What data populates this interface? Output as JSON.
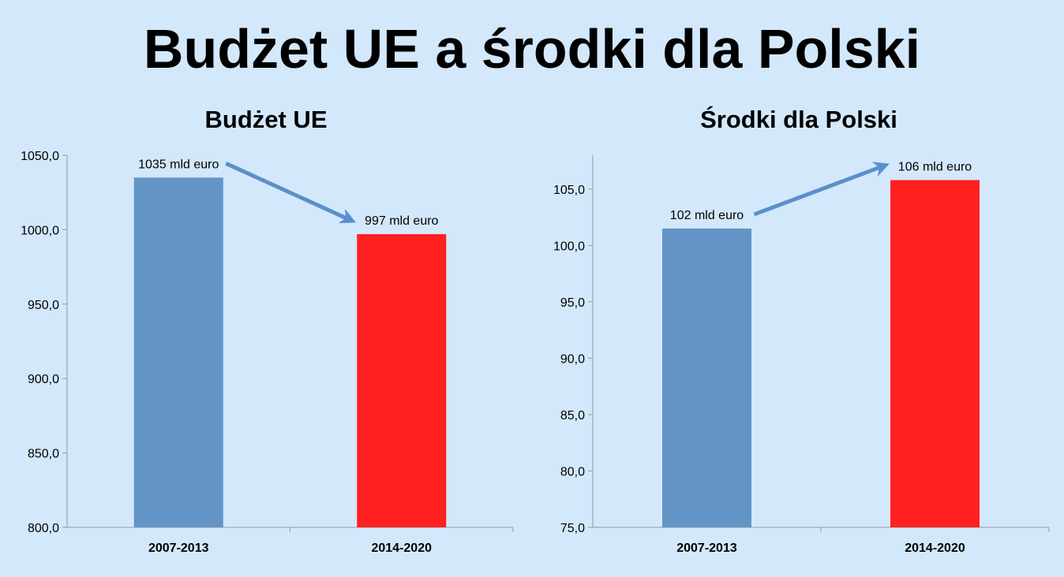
{
  "slide": {
    "title": "Budżet UE a środki dla Polski"
  },
  "colors": {
    "background": "#d3e8fb",
    "bar_blue": "#6294c6",
    "bar_red": "#ff2020",
    "arrow": "#5b8fcb"
  },
  "chart_data": [
    {
      "type": "bar",
      "title": "Budżet UE",
      "categories": [
        "2007-2013",
        "2014-2020"
      ],
      "values": [
        1035,
        997
      ],
      "data_labels": [
        "1035 mld euro",
        "997 mld euro"
      ],
      "bar_colors": [
        "#6294c6",
        "#ff2020"
      ],
      "ylim": [
        800,
        1050
      ],
      "yticks": [
        800,
        850,
        900,
        950,
        1000,
        1050
      ],
      "ytick_labels": [
        "800,0",
        "850,0",
        "900,0",
        "950,0",
        "1000,0",
        "1050,0"
      ],
      "xlabel": "",
      "ylabel": "",
      "grid": false,
      "arrow": "from first bar label down to second bar label"
    },
    {
      "type": "bar",
      "title": "Środki dla Polski",
      "categories": [
        "2007-2013",
        "2014-2020"
      ],
      "values": [
        101.5,
        105.8
      ],
      "data_labels": [
        "102 mld euro",
        "106 mld euro"
      ],
      "bar_colors": [
        "#6294c6",
        "#ff2020"
      ],
      "ylim": [
        75,
        108
      ],
      "yticks": [
        75,
        80,
        85,
        90,
        95,
        100,
        105
      ],
      "ytick_labels": [
        "75,0",
        "80,0",
        "85,0",
        "90,0",
        "95,0",
        "100,0",
        "105,0"
      ],
      "xlabel": "",
      "ylabel": "",
      "grid": false,
      "arrow": "from first bar label up to second bar label"
    }
  ]
}
